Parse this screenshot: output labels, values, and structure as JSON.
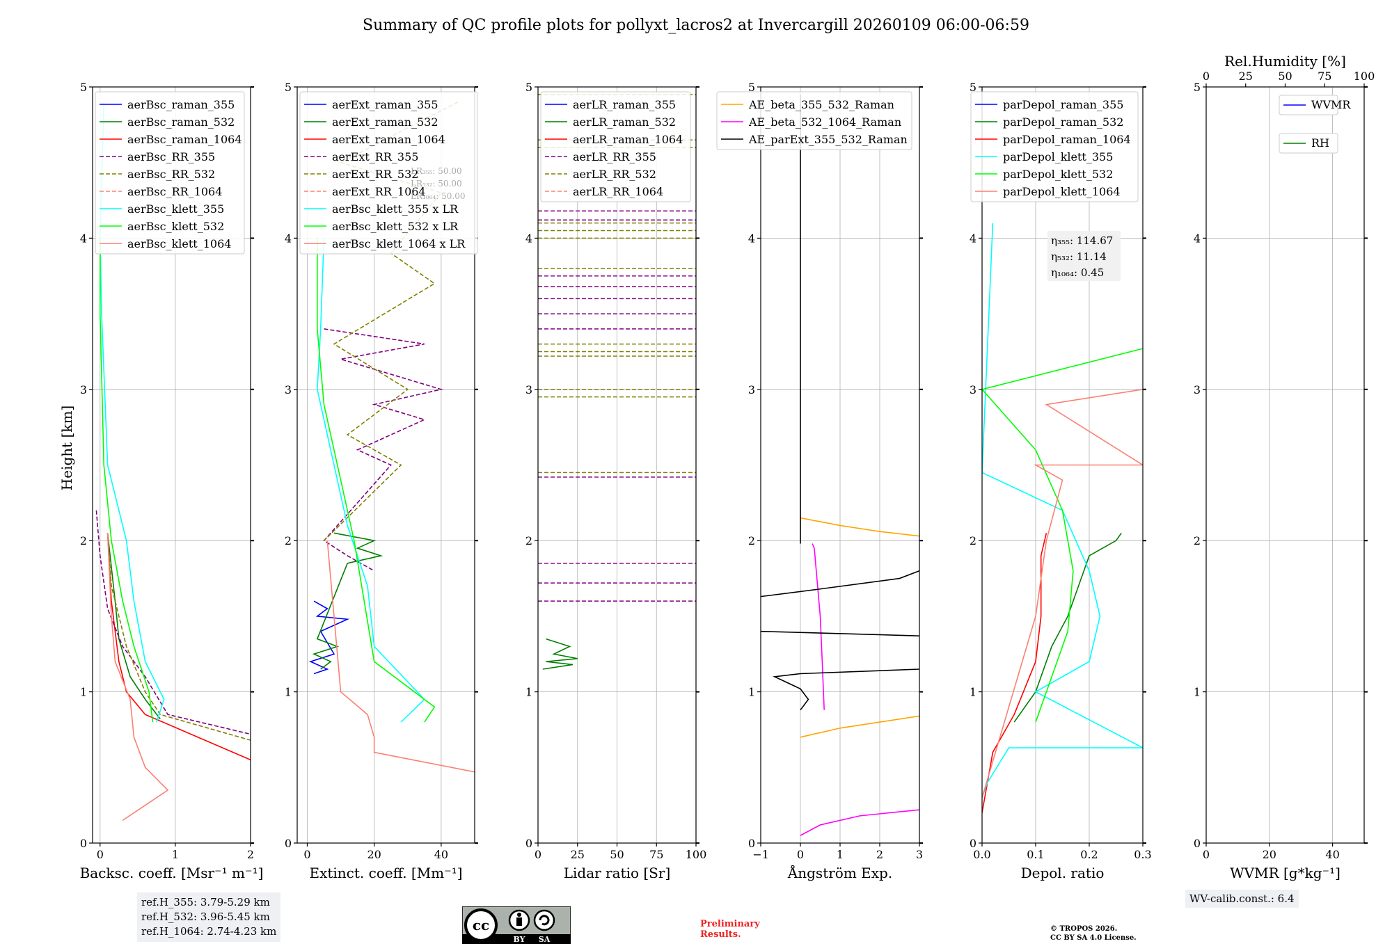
{
  "page": {
    "title": "Summary of QC profile plots for pollyxt_lacros2 at Invercargill 20260109 06:00-06:59",
    "ylabel": "Height [km]",
    "ref_heights": [
      "ref.H_355: 3.79-5.29 km",
      "ref.H_532: 3.96-5.45 km",
      "ref.H_1064: 2.74-4.23 km"
    ],
    "wv_calib": "WV-calib.const.: 6.4",
    "preliminary": [
      "Preliminary",
      "Results."
    ],
    "copyright": [
      "© TROPOS 2026.",
      "CC BY SA 4.0 License."
    ],
    "cc_badge": {
      "text": [
        "BY",
        "SA"
      ],
      "icon": "cc-by-sa-icon"
    }
  },
  "colors": {
    "blue": "#0000ff",
    "green": "#008000",
    "red": "#ff0000",
    "purple": "#800080",
    "olive": "#808000",
    "salmon": "#fa8072",
    "cyan": "#00ffff",
    "lime": "#00ff00",
    "orange": "#ffa500",
    "magenta": "#ff00ff",
    "black": "#000000",
    "grid": "#b0b0b0"
  },
  "chart_data": [
    {
      "type": "line",
      "id": "bsc",
      "xlabel": "Backsc. coeff. [Msr⁻¹ m⁻¹]",
      "ylabel": "Height [km]",
      "xlim": [
        -0.1,
        2
      ],
      "ylim": [
        0,
        5
      ],
      "xticks": [
        0,
        1,
        2
      ],
      "xtick_labels": [
        "0",
        "1",
        "2"
      ],
      "yticks": [
        0,
        1,
        2,
        3,
        4,
        5
      ],
      "ytick_labels": [
        "0",
        "1",
        "2",
        "3",
        "4",
        "5"
      ],
      "grid": true,
      "legend": "top-right",
      "series": [
        {
          "name": "aerBsc_raman_355",
          "color": "blue",
          "dash": false,
          "values": []
        },
        {
          "name": "aerBsc_raman_532",
          "color": "green",
          "dash": false,
          "x": [
            0.1,
            0.2,
            0.25,
            0.4,
            0.6,
            0.8
          ],
          "y": [
            2.05,
            1.6,
            1.35,
            1.1,
            0.95,
            0.82
          ]
        },
        {
          "name": "aerBsc_raman_1064",
          "color": "red",
          "dash": false,
          "x": [
            0.1,
            0.15,
            0.25,
            0.35,
            0.6,
            2.0
          ],
          "y": [
            2.05,
            1.6,
            1.2,
            1.0,
            0.85,
            0.55
          ]
        },
        {
          "name": "aerBsc_RR_355",
          "color": "purple",
          "dash": true,
          "x": [
            -0.05,
            0.0,
            0.1,
            0.3,
            0.6,
            0.9,
            2.0
          ],
          "y": [
            2.2,
            1.9,
            1.55,
            1.3,
            1.1,
            0.85,
            0.72
          ]
        },
        {
          "name": "aerBsc_RR_532",
          "color": "olive",
          "dash": true,
          "x": [
            0.1,
            0.15,
            0.35,
            0.6,
            0.8,
            2.0
          ],
          "y": [
            2.05,
            1.7,
            1.3,
            1.0,
            0.85,
            0.68
          ]
        },
        {
          "name": "aerBsc_RR_1064",
          "color": "salmon",
          "dash": true,
          "values": []
        },
        {
          "name": "aerBsc_klett_355",
          "color": "cyan",
          "dash": false,
          "x": [
            0.05,
            0.0,
            0.02,
            0.1,
            0.35,
            0.45,
            0.6,
            0.85,
            0.75
          ],
          "y": [
            4.9,
            4.0,
            3.5,
            2.5,
            2.0,
            1.6,
            1.2,
            0.95,
            0.8
          ]
        },
        {
          "name": "aerBsc_klett_532",
          "color": "lime",
          "dash": false,
          "x": [
            0.0,
            0.0,
            0.05,
            0.15,
            0.3,
            0.45,
            0.65,
            0.7
          ],
          "y": [
            4.0,
            3.5,
            2.5,
            2.0,
            1.6,
            1.3,
            1.0,
            0.8
          ]
        },
        {
          "name": "aerBsc_klett_1064",
          "color": "salmon",
          "dash": false,
          "x": [
            0.1,
            0.15,
            0.2,
            0.4,
            0.45,
            0.6,
            0.9,
            0.6,
            0.3
          ],
          "y": [
            2.05,
            1.5,
            1.2,
            0.95,
            0.7,
            0.5,
            0.35,
            0.25,
            0.15
          ]
        }
      ]
    },
    {
      "type": "line",
      "id": "ext",
      "xlabel": "Extinct. coeff. [Mm⁻¹]",
      "ylabel": "",
      "xlim": [
        -3,
        50
      ],
      "ylim": [
        0,
        5
      ],
      "xticks": [
        0,
        20,
        40
      ],
      "xtick_labels": [
        "0",
        "20",
        "40"
      ],
      "yticks": [
        0,
        1,
        2,
        3,
        4,
        5
      ],
      "ytick_labels": [
        "0",
        "1",
        "2",
        "3",
        "4",
        "5"
      ],
      "grid": true,
      "legend": "top-right",
      "series": [
        {
          "name": "aerExt_raman_355",
          "color": "blue",
          "dash": false,
          "x": [
            2,
            6,
            3,
            12,
            4,
            8,
            1,
            6,
            2
          ],
          "y": [
            1.6,
            1.55,
            1.5,
            1.48,
            1.4,
            1.25,
            1.2,
            1.15,
            1.12
          ]
        },
        {
          "name": "aerExt_raman_532",
          "color": "green",
          "dash": false,
          "x": [
            8,
            20,
            15,
            22,
            12,
            3,
            9,
            2,
            7,
            4
          ],
          "y": [
            2.05,
            2.0,
            1.95,
            1.9,
            1.85,
            1.35,
            1.3,
            1.25,
            1.2,
            1.15
          ]
        },
        {
          "name": "aerExt_raman_1064",
          "color": "red",
          "dash": false,
          "values": []
        },
        {
          "name": "aerExt_RR_355",
          "color": "purple",
          "dash": true,
          "x": [
            5,
            35,
            10,
            40,
            20,
            35,
            15,
            25,
            5,
            12,
            20
          ],
          "y": [
            3.4,
            3.3,
            3.2,
            3.0,
            2.9,
            2.8,
            2.6,
            2.5,
            2.0,
            1.9,
            1.8
          ]
        },
        {
          "name": "aerExt_RR_532",
          "color": "olive",
          "dash": true,
          "x": [
            45,
            10,
            40,
            25,
            38,
            8,
            30,
            12,
            28,
            5
          ],
          "y": [
            4.9,
            4.5,
            4.3,
            3.9,
            3.7,
            3.3,
            3.0,
            2.7,
            2.5,
            2.0
          ]
        },
        {
          "name": "aerExt_RR_1064",
          "color": "salmon",
          "dash": true,
          "values": []
        },
        {
          "name": "aerBsc_klett_355 x LR",
          "color": "cyan",
          "dash": false,
          "x": [
            5,
            4,
            3,
            8,
            12,
            18,
            20,
            35,
            28
          ],
          "y": [
            4.0,
            3.4,
            3.0,
            2.5,
            2.1,
            1.7,
            1.3,
            0.95,
            0.8
          ]
        },
        {
          "name": "aerBsc_klett_532 x LR",
          "color": "lime",
          "dash": false,
          "x": [
            3,
            3,
            5,
            10,
            14,
            17,
            20,
            38,
            35
          ],
          "y": [
            4.0,
            3.4,
            2.9,
            2.4,
            2.0,
            1.6,
            1.2,
            0.9,
            0.8
          ]
        },
        {
          "name": "aerBsc_klett_1064 x LR",
          "color": "salmon",
          "dash": false,
          "x": [
            6,
            8,
            10,
            18,
            20,
            20,
            50
          ],
          "y": [
            2.0,
            1.5,
            1.0,
            0.85,
            0.7,
            0.6,
            0.47
          ]
        }
      ],
      "annotations": [
        "LR₃₅₅: 50.00",
        "LR₅₃₂: 50.00",
        "LR₁₀₆₄: 50.00"
      ]
    },
    {
      "type": "line",
      "id": "lr",
      "xlabel": "Lidar ratio [Sr]",
      "ylabel": "",
      "xlim": [
        0,
        100
      ],
      "ylim": [
        0,
        5
      ],
      "xticks": [
        0,
        25,
        50,
        75,
        100
      ],
      "xtick_labels": [
        "0",
        "25",
        "50",
        "75",
        "100"
      ],
      "yticks": [
        0,
        1,
        2,
        3,
        4,
        5
      ],
      "ytick_labels": [
        "0",
        "1",
        "2",
        "3",
        "4",
        "5"
      ],
      "grid": true,
      "legend": "top-right",
      "series": [
        {
          "name": "aerLR_raman_355",
          "color": "blue",
          "dash": false,
          "values": []
        },
        {
          "name": "aerLR_raman_532",
          "color": "green",
          "dash": false,
          "x": [
            5,
            20,
            10,
            25,
            5,
            22,
            3
          ],
          "y": [
            1.35,
            1.3,
            1.25,
            1.22,
            1.2,
            1.18,
            1.15
          ]
        },
        {
          "name": "aerLR_raman_1064",
          "color": "red",
          "dash": false,
          "values": []
        },
        {
          "name": "aerLR_RR_355",
          "color": "purple",
          "dash": true,
          "bands_y": [
            4.18,
            4.12,
            3.75,
            3.68,
            3.6,
            3.5,
            3.4,
            2.42,
            1.85,
            1.72,
            1.6
          ]
        },
        {
          "name": "aerLR_RR_532",
          "color": "olive",
          "dash": true,
          "bands_y": [
            4.95,
            4.65,
            4.6,
            4.1,
            4.05,
            4.0,
            3.8,
            3.3,
            3.25,
            3.22,
            3.0,
            2.95,
            2.45
          ]
        },
        {
          "name": "aerLR_RR_1064",
          "color": "salmon",
          "dash": true,
          "values": []
        }
      ]
    },
    {
      "type": "line",
      "id": "ae",
      "xlabel": "Ångström Exp.",
      "ylabel": "",
      "xlim": [
        -1,
        3
      ],
      "ylim": [
        0,
        5
      ],
      "xticks": [
        -1,
        0,
        1,
        2,
        3
      ],
      "xtick_labels": [
        "−1",
        "0",
        "1",
        "2",
        "3"
      ],
      "yticks": [
        0,
        1,
        2,
        3,
        4,
        5
      ],
      "ytick_labels": [
        "0",
        "1",
        "2",
        "3",
        "4",
        "5"
      ],
      "grid": true,
      "legend": "top-left",
      "series": [
        {
          "name": "AE_beta_355_532_Raman",
          "color": "orange",
          "dash": false,
          "x": [
            0.0,
            1.0,
            2.0,
            3.0
          ],
          "y": [
            2.15,
            2.1,
            2.06,
            2.03
          ],
          "x2": [
            0.0,
            1.0,
            2.0,
            3.0
          ],
          "y2": [
            0.7,
            0.76,
            0.8,
            0.84
          ]
        },
        {
          "name": "AE_beta_532_1064_Raman",
          "color": "magenta",
          "dash": false,
          "x": [
            0.3,
            0.35,
            0.5,
            0.55,
            0.6
          ],
          "y": [
            1.98,
            1.95,
            1.5,
            1.2,
            0.88
          ],
          "x2": [
            0.0,
            0.5,
            1.5,
            3.0
          ],
          "y2": [
            0.05,
            0.12,
            0.18,
            0.22
          ]
        },
        {
          "name": "AE_parExt_355_532_Raman",
          "color": "black",
          "dash": false,
          "x": [
            0.0,
            0.0,
            0.0
          ],
          "y": [
            4.95,
            2.0,
            1.98
          ],
          "segments": [
            [
              [
                -1.0,
                1.63
              ],
              [
                0.5,
                1.68
              ],
              [
                2.5,
                1.75
              ],
              [
                3.0,
                1.8
              ]
            ],
            [
              [
                -1.0,
                1.4
              ],
              [
                3.0,
                1.37
              ]
            ],
            [
              [
                3.0,
                1.15
              ],
              [
                0.0,
                1.12
              ],
              [
                -0.65,
                1.1
              ],
              [
                0.0,
                1.02
              ],
              [
                0.2,
                0.95
              ],
              [
                0.0,
                0.88
              ]
            ]
          ]
        }
      ]
    },
    {
      "type": "line",
      "id": "depol",
      "xlabel": "Depol. ratio",
      "ylabel": "",
      "xlim": [
        0,
        0.3
      ],
      "ylim": [
        0,
        5
      ],
      "xticks": [
        0.0,
        0.1,
        0.2,
        0.3
      ],
      "xtick_labels": [
        "0.0",
        "0.1",
        "0.2",
        "0.3"
      ],
      "yticks": [
        0,
        1,
        2,
        3,
        4,
        5
      ],
      "ytick_labels": [
        "0",
        "1",
        "2",
        "3",
        "4",
        "5"
      ],
      "grid": true,
      "legend": "top-left",
      "series": [
        {
          "name": "parDepol_raman_355",
          "color": "blue",
          "dash": false,
          "values": []
        },
        {
          "name": "parDepol_raman_532",
          "color": "green",
          "dash": false,
          "x": [
            0.06,
            0.1,
            0.13,
            0.16,
            0.18,
            0.2,
            0.25,
            0.26
          ],
          "y": [
            0.8,
            1.0,
            1.3,
            1.5,
            1.7,
            1.9,
            2.0,
            2.05
          ]
        },
        {
          "name": "parDepol_raman_1064",
          "color": "red",
          "dash": false,
          "x": [
            0.0,
            0.02,
            0.06,
            0.1,
            0.11,
            0.11,
            0.12
          ],
          "y": [
            0.2,
            0.6,
            0.85,
            1.2,
            1.5,
            1.9,
            2.05
          ]
        },
        {
          "name": "parDepol_klett_355",
          "color": "cyan",
          "dash": false,
          "x": [
            0.0,
            0.01,
            0.05,
            0.3,
            0.1,
            0.2,
            0.22,
            0.2,
            0.15,
            0.0,
            0.02
          ],
          "y": [
            0.3,
            0.4,
            0.63,
            0.63,
            1.0,
            1.2,
            1.5,
            1.8,
            2.2,
            2.45,
            4.1
          ]
        },
        {
          "name": "parDepol_klett_532",
          "color": "lime",
          "dash": false,
          "x": [
            0.1,
            0.12,
            0.16,
            0.17,
            0.15,
            0.1,
            0.0,
            0.3
          ],
          "y": [
            0.8,
            1.0,
            1.4,
            1.8,
            2.2,
            2.6,
            3.0,
            3.27
          ]
        },
        {
          "name": "parDepol_klett_1064",
          "color": "salmon",
          "dash": false,
          "x": [
            0.0,
            0.05,
            0.1,
            0.12,
            0.15,
            0.1,
            0.3,
            0.12,
            0.3
          ],
          "y": [
            0.3,
            0.9,
            1.5,
            2.0,
            2.4,
            2.5,
            2.5,
            2.9,
            3.0
          ]
        }
      ],
      "annotations": [
        "η₃₅₅: 114.67",
        "η₅₃₂: 11.14",
        "η₁₀₆₄: 0.45"
      ]
    },
    {
      "type": "line",
      "id": "wv",
      "xlabel": "WVMR [g*kg⁻¹]",
      "ylabel": "",
      "xlim": [
        0,
        50
      ],
      "ylim": [
        0,
        5
      ],
      "xticks": [
        0,
        20,
        40
      ],
      "xtick_labels": [
        "0",
        "20",
        "40"
      ],
      "top_xlabel": "Rel.Humidity [%]",
      "top_xlim": [
        0,
        100
      ],
      "top_xticks": [
        0,
        25,
        50,
        75,
        100
      ],
      "top_xtick_labels": [
        "0",
        "25",
        "50",
        "75",
        "100"
      ],
      "yticks": [
        0,
        1,
        2,
        3,
        4,
        5
      ],
      "ytick_labels": [
        "0",
        "1",
        "2",
        "3",
        "4",
        "5"
      ],
      "grid": true,
      "legend": "top-right",
      "series": [
        {
          "name": "WVMR",
          "color": "blue",
          "dash": false,
          "values": []
        },
        {
          "name": "RH",
          "color": "green",
          "dash": false,
          "values": []
        }
      ]
    }
  ]
}
